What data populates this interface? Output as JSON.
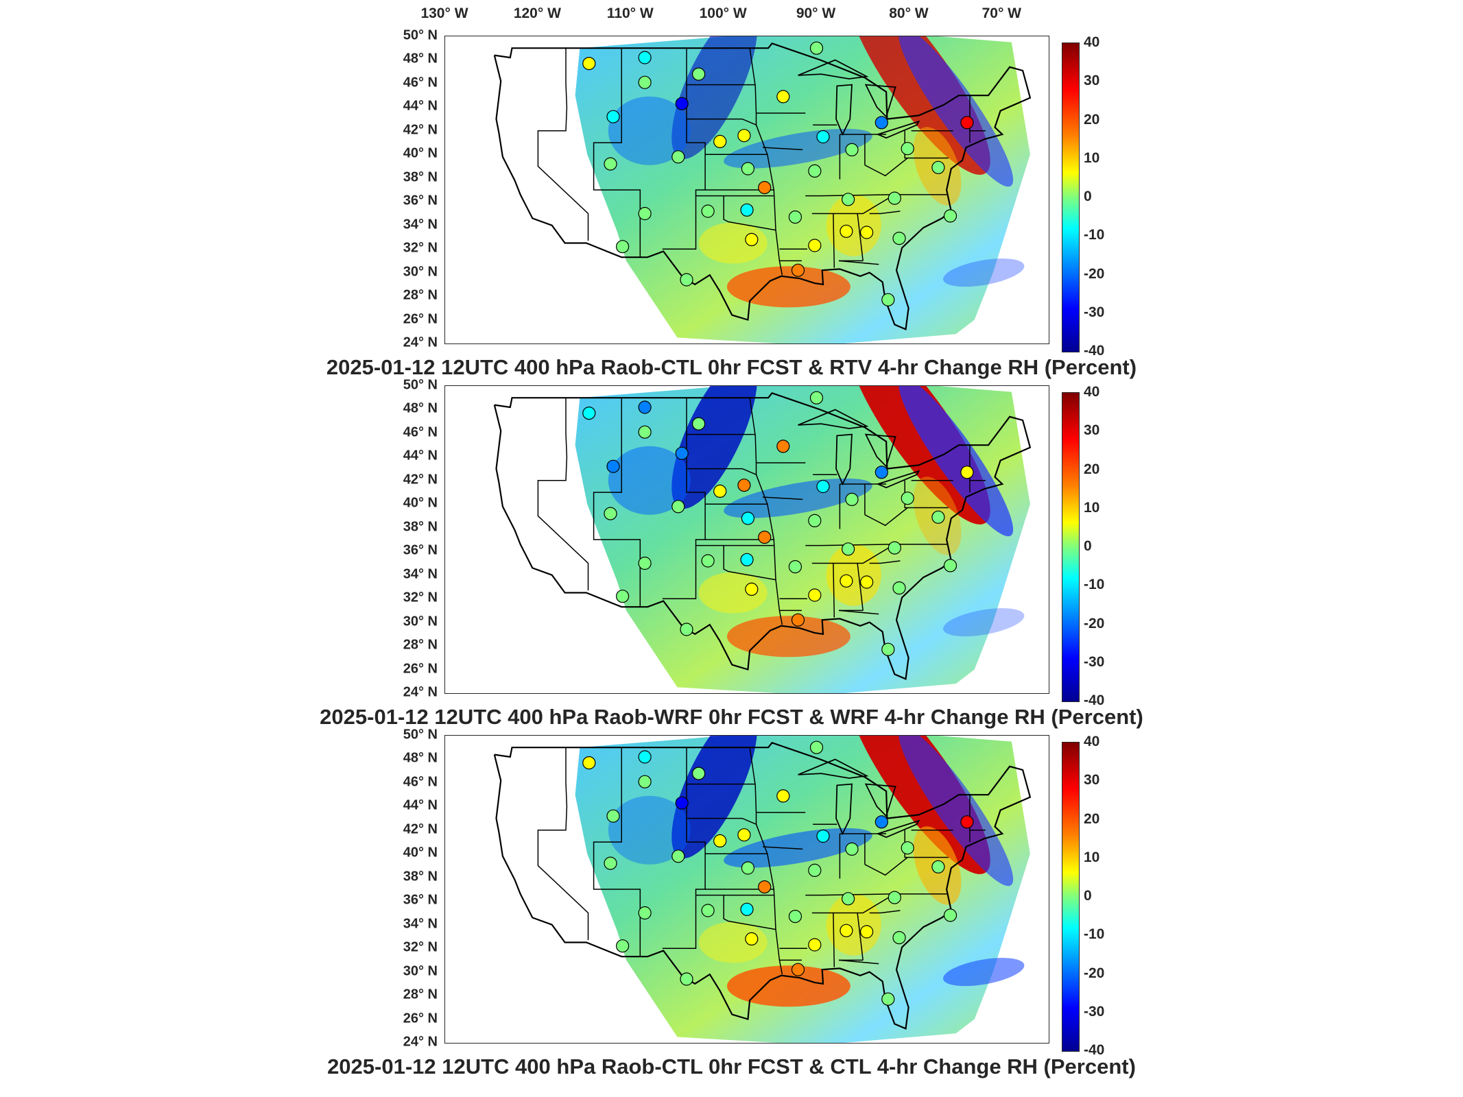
{
  "longitude_labels": [
    "130° W",
    "120° W",
    "110° W",
    "100° W",
    "90° W",
    "80° W",
    "70° W"
  ],
  "latitude_labels": [
    "50° N",
    "48° N",
    "46° N",
    "44° N",
    "42° N",
    "40° N",
    "38° N",
    "36° N",
    "34° N",
    "32° N",
    "30° N",
    "28° N",
    "26° N",
    "24° N"
  ],
  "colorbar": {
    "ticks": [
      "40",
      "30",
      "20",
      "10",
      "0",
      "-10",
      "-20",
      "-30",
      "-40"
    ],
    "range": [
      -40,
      40
    ],
    "colormap": [
      "#000090",
      "#0000ff",
      "#0080ff",
      "#00ffff",
      "#7fff7f",
      "#ffff00",
      "#ff8000",
      "#ff0000",
      "#800000"
    ]
  },
  "panels": [
    {
      "title": "2025-01-12 12UTC 400 hPa Raob-CTL 0hr FCST & RTV 4-hr Change RH (Percent)"
    },
    {
      "title": "2025-01-12 12UTC 400 hPa Raob-WRF 0hr FCST & WRF 4-hr Change RH (Percent)"
    },
    {
      "title": "2025-01-12 12UTC 400 hPa Raob-CTL 0hr FCST & CTL 4-hr Change RH (Percent)"
    }
  ],
  "chart_data": {
    "type": "heatmap",
    "variable": "RH (Percent)",
    "level": "400 hPa",
    "valid_time": "2025-01-12 12UTC",
    "lon_range": [
      -130,
      -65
    ],
    "lat_range": [
      24,
      50
    ],
    "raob_stations": [
      {
        "lon": -114.5,
        "lat": 47.7,
        "values": [
          12,
          -8,
          12
        ]
      },
      {
        "lon": -108.5,
        "lat": 48.2,
        "values": [
          -8,
          -25,
          -8
        ]
      },
      {
        "lon": -102.7,
        "lat": 46.8,
        "values": [
          2,
          0,
          2
        ]
      },
      {
        "lon": -104.5,
        "lat": 44.3,
        "values": [
          -28,
          -25,
          -28
        ]
      },
      {
        "lon": -111.9,
        "lat": 43.2,
        "values": [
          -15,
          -20,
          -3
        ]
      },
      {
        "lon": -100.4,
        "lat": 41.1,
        "values": [
          5,
          5,
          5
        ]
      },
      {
        "lon": -97.8,
        "lat": 41.6,
        "values": [
          12,
          20,
          12
        ]
      },
      {
        "lon": -93.6,
        "lat": 44.9,
        "values": [
          12,
          20,
          5
        ]
      },
      {
        "lon": -89.3,
        "lat": 41.5,
        "values": [
          -12,
          -12,
          -12
        ]
      },
      {
        "lon": -86.2,
        "lat": 40.4,
        "values": [
          0,
          0,
          0
        ]
      },
      {
        "lon": -83.0,
        "lat": 42.7,
        "values": [
          -20,
          -20,
          -20
        ]
      },
      {
        "lon": -80.2,
        "lat": 40.5,
        "values": [
          -5,
          -5,
          -5
        ]
      },
      {
        "lon": -73.8,
        "lat": 42.7,
        "values": [
          25,
          12,
          25
        ]
      },
      {
        "lon": -112.2,
        "lat": 39.2,
        "values": [
          2,
          2,
          2
        ]
      },
      {
        "lon": -104.9,
        "lat": 39.8,
        "values": [
          2,
          2,
          2
        ]
      },
      {
        "lon": -97.4,
        "lat": 38.8,
        "values": [
          2,
          -8,
          2
        ]
      },
      {
        "lon": -95.6,
        "lat": 37.2,
        "values": [
          18,
          18,
          18
        ]
      },
      {
        "lon": -90.2,
        "lat": 38.6,
        "values": [
          2,
          2,
          2
        ]
      },
      {
        "lon": -86.6,
        "lat": 36.2,
        "values": [
          2,
          2,
          2
        ]
      },
      {
        "lon": -81.6,
        "lat": 36.3,
        "values": [
          -5,
          -5,
          -5
        ]
      },
      {
        "lon": -108.5,
        "lat": 35.0,
        "values": [
          2,
          2,
          2
        ]
      },
      {
        "lon": -101.7,
        "lat": 35.2,
        "values": [
          2,
          2,
          2
        ]
      },
      {
        "lon": -97.5,
        "lat": 35.3,
        "values": [
          -8,
          -8,
          -8
        ]
      },
      {
        "lon": -92.3,
        "lat": 34.7,
        "values": [
          2,
          2,
          2
        ]
      },
      {
        "lon": -84.6,
        "lat": 33.4,
        "values": [
          5,
          5,
          5
        ]
      },
      {
        "lon": -81.1,
        "lat": 32.9,
        "values": [
          2,
          2,
          2
        ]
      },
      {
        "lon": -110.9,
        "lat": 32.2,
        "values": [
          2,
          2,
          2
        ]
      },
      {
        "lon": -97.0,
        "lat": 32.8,
        "values": [
          5,
          5,
          5
        ]
      },
      {
        "lon": -90.2,
        "lat": 32.3,
        "values": [
          5,
          5,
          5
        ]
      },
      {
        "lon": -86.8,
        "lat": 33.5,
        "values": [
          5,
          5,
          5
        ]
      },
      {
        "lon": -92.0,
        "lat": 30.2,
        "values": [
          20,
          20,
          20
        ]
      },
      {
        "lon": -104.0,
        "lat": 29.4,
        "values": [
          2,
          2,
          2
        ]
      },
      {
        "lon": -82.3,
        "lat": 27.7,
        "values": [
          2,
          2,
          2
        ]
      },
      {
        "lon": -76.9,
        "lat": 38.9,
        "values": [
          -5,
          -5,
          -5
        ]
      },
      {
        "lon": -75.6,
        "lat": 34.8,
        "values": [
          2,
          2,
          2
        ]
      },
      {
        "lon": -108.5,
        "lat": 46.1,
        "values": [
          2,
          2,
          2
        ]
      },
      {
        "lon": -90.0,
        "lat": 49.0,
        "values": [
          2,
          2,
          2
        ]
      }
    ]
  }
}
